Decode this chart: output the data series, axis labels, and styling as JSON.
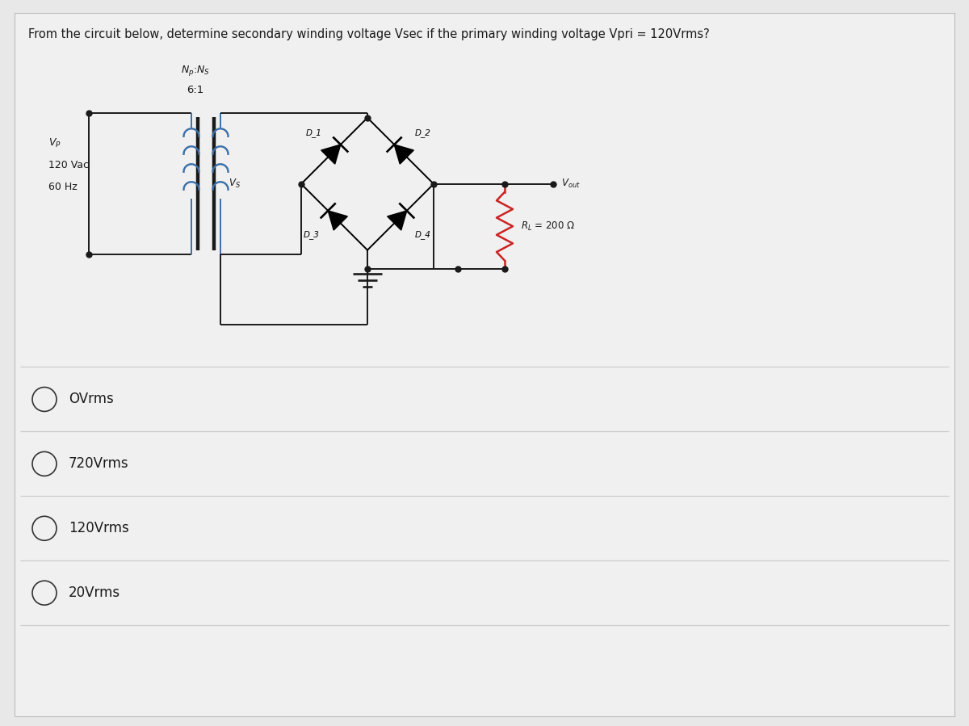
{
  "title": "From the circuit below, determine secondary winding voltage Vsec if the primary winding voltage Vpri = 120Vrms?",
  "title_fontsize": 10.5,
  "bg_color": "#e8e8e8",
  "panel_color": "#f0f0f0",
  "options": [
    "OVrms",
    "720Vrms",
    "120Vrms",
    "20Vrms"
  ],
  "transformer_label": "N_p:N_S",
  "transformer_ratio": "6:1",
  "vp_line1": "V_P",
  "vp_line2": "120 Vac",
  "vp_line3": "60 Hz",
  "vs_label": "V_S",
  "vout_label": "V_out",
  "rl_label": "R_L = 200 Ω",
  "d1_label": "D_1",
  "d2_label": "D_2",
  "d3_label": "D_3",
  "d4_label": "D_4",
  "line_color": "#1a1a1a",
  "resistor_color": "#cc2222",
  "text_color": "#1a1a1a",
  "coil_color_pri": "#3a6fa8",
  "coil_color_sec": "#3a6fa8",
  "divider_color": "#cccccc",
  "option_ring_color": "#333333"
}
